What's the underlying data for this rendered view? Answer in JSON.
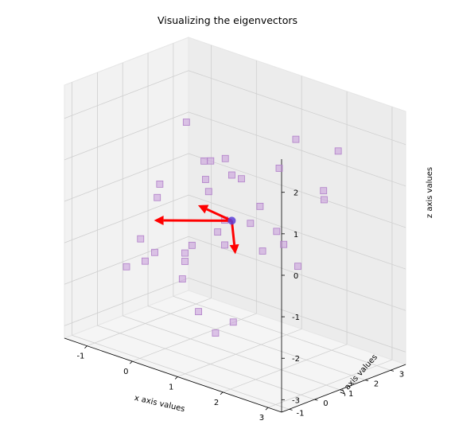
{
  "chart_data": {
    "type": "scatter",
    "title": "Visualizing the eigenvectors",
    "xlabel": "x axis values",
    "ylabel": "y axis values",
    "zlabel": "z axis values",
    "xlim": [
      -1.5,
      3.3
    ],
    "ylim": [
      -1.3,
      3.6
    ],
    "zlim": [
      -3.3,
      2.8
    ],
    "xticks": [
      -1,
      0,
      1,
      2,
      3
    ],
    "yticks": [
      -1,
      0,
      1,
      2,
      3
    ],
    "zticks": [
      -3,
      -2,
      -1,
      0,
      1,
      2
    ],
    "grid": true,
    "colors": {
      "points": "#c9a0dc",
      "points_edge": "#b07fc8",
      "arrows": "#ff0000",
      "mean": "#5a3fd8"
    },
    "points": [
      [
        0.3,
        0.3,
        2.2
      ],
      [
        1.6,
        2.3,
        1.8
      ],
      [
        2.2,
        2.9,
        1.6
      ],
      [
        2.1,
        2.5,
        0.7
      ],
      [
        1.4,
        2.0,
        1.1
      ],
      [
        0.8,
        1.2,
        0.9
      ],
      [
        0.6,
        1.3,
        1.2
      ],
      [
        0.3,
        1.0,
        1.1
      ],
      [
        0.5,
        0.7,
        0.8
      ],
      [
        0.5,
        0.9,
        1.2
      ],
      [
        0.9,
        1.4,
        0.8
      ],
      [
        1.2,
        1.6,
        0.2
      ],
      [
        0.4,
        1.0,
        0.4
      ],
      [
        -0.4,
        0.5,
        0.4
      ],
      [
        -0.4,
        0.4,
        0.1
      ],
      [
        2.0,
        2.7,
        0.4
      ],
      [
        1.1,
        1.4,
        -0.2
      ],
      [
        1.4,
        1.9,
        -0.4
      ],
      [
        1.5,
        2.0,
        -0.7
      ],
      [
        1.2,
        1.7,
        -0.9
      ],
      [
        1.7,
        2.2,
        -1.2
      ],
      [
        0.7,
        1.1,
        -0.2
      ],
      [
        0.6,
        1.0,
        -0.5
      ],
      [
        0.7,
        1.1,
        -0.8
      ],
      [
        0.2,
        0.7,
        -0.9
      ],
      [
        -0.6,
        0.1,
        -0.9
      ],
      [
        0.1,
        0.6,
        -1.1
      ],
      [
        0.1,
        0.6,
        -1.3
      ],
      [
        -0.8,
        -0.1,
        -1.6
      ],
      [
        -0.5,
        0.1,
        -1.4
      ],
      [
        -0.4,
        0.3,
        -1.2
      ],
      [
        0.1,
        0.5,
        -1.7
      ],
      [
        0.4,
        0.6,
        -2.4
      ],
      [
        1.0,
        0.9,
        -2.5
      ],
      [
        1.0,
        0.2,
        -2.6
      ]
    ],
    "mean": [
      0.8,
      1.2,
      -0.2
    ],
    "eigenvectors": [
      [
        -0.55,
        -0.35,
        0.25
      ],
      [
        -1.3,
        -0.75,
        -0.3
      ],
      [
        0.05,
        0.05,
        -0.8
      ]
    ]
  }
}
